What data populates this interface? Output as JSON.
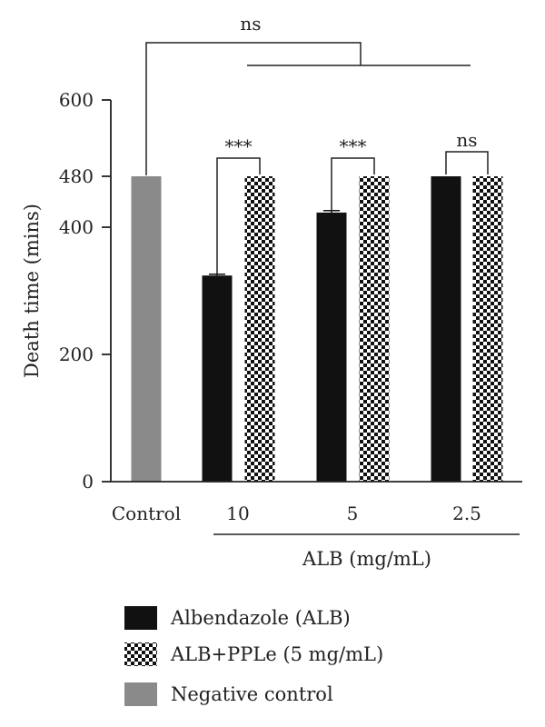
{
  "chart_data": {
    "type": "bar",
    "title": "",
    "ylabel": "Death time (mins)",
    "xlabel": "ALB (mg/mL)",
    "ylim": [
      0,
      600
    ],
    "yticks": [
      0,
      200,
      400,
      480,
      600
    ],
    "y_tick_labels": [
      "0",
      "200",
      "400",
      "480",
      "600"
    ],
    "categories": [
      "Control",
      "10",
      "5",
      "2.5"
    ],
    "series": [
      {
        "name": "Negative control",
        "values": [
          480,
          null,
          null,
          null
        ],
        "color": "#8a8a8a",
        "pattern": "solid"
      },
      {
        "name": "Albendazole (ALB)",
        "values": [
          null,
          324,
          423,
          480
        ],
        "color": "#111111",
        "pattern": "solid"
      },
      {
        "name": "ALB+PPLe (5 mg/mL)",
        "values": [
          null,
          480,
          480,
          480
        ],
        "color": "#111111",
        "pattern": "checker"
      }
    ],
    "error_bars": {
      "Albendazole (ALB)": [
        null,
        2,
        3,
        0
      ]
    },
    "significance": [
      {
        "label": "***",
        "category": "10"
      },
      {
        "label": "***",
        "category": "5"
      },
      {
        "label": "ns",
        "category": "2.5"
      },
      {
        "label": "ns",
        "category": "Control"
      }
    ],
    "legend_placement": "bottom",
    "legend": [
      {
        "label": "Albendazole (ALB)",
        "pattern": "solid",
        "color": "#111111"
      },
      {
        "label": "ALB+PPLe (5 mg/mL)",
        "pattern": "checker",
        "color": "#111111"
      },
      {
        "label": "Negative control",
        "pattern": "solid",
        "color": "#8a8a8a"
      }
    ]
  }
}
